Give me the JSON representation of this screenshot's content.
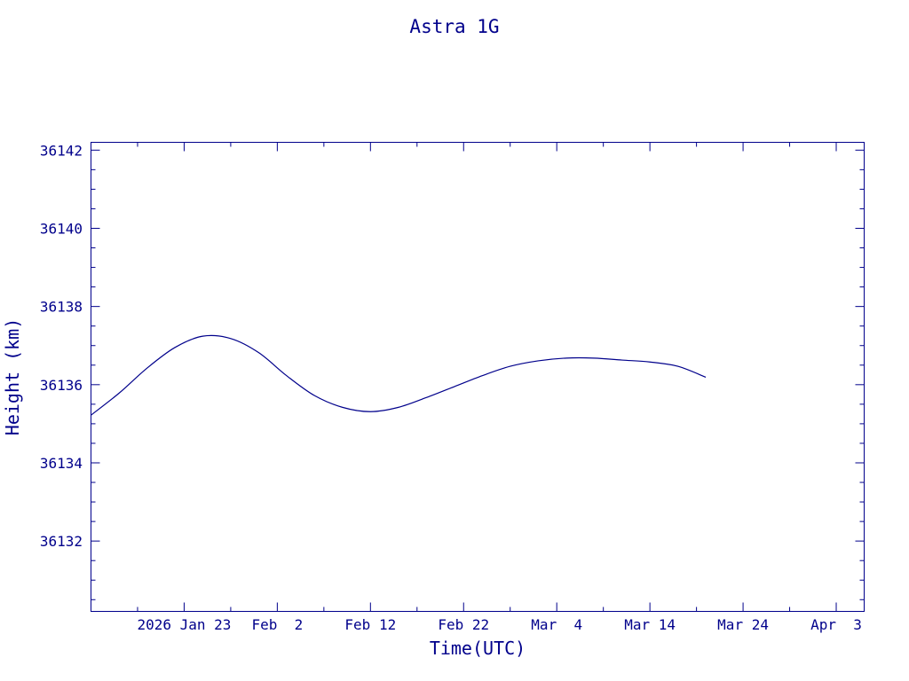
{
  "chart_data": {
    "type": "line",
    "title": "Astra 1G",
    "xlabel": "Time(UTC)",
    "ylabel": "Height (km)",
    "xlim": [
      "2026-01-13",
      "2026-04-06"
    ],
    "ylim": [
      36130.2,
      36142.2
    ],
    "x_ticks": [
      {
        "date": "2026-01-23",
        "label": "2026 Jan 23"
      },
      {
        "date": "2026-02-02",
        "label": "Feb  2"
      },
      {
        "date": "2026-02-12",
        "label": "Feb 12"
      },
      {
        "date": "2026-02-22",
        "label": "Feb 22"
      },
      {
        "date": "2026-03-04",
        "label": "Mar  4"
      },
      {
        "date": "2026-03-14",
        "label": "Mar 14"
      },
      {
        "date": "2026-03-24",
        "label": "Mar 24"
      },
      {
        "date": "2026-04-03",
        "label": "Apr  3"
      }
    ],
    "x_minor_ticks": [
      "2026-01-18",
      "2026-01-28",
      "2026-02-07",
      "2026-02-17",
      "2026-02-27",
      "2026-03-09",
      "2026-03-19",
      "2026-03-29"
    ],
    "y_ticks": [
      36132,
      36134,
      36136,
      36138,
      36140,
      36142
    ],
    "y_minor_step": 0.5,
    "grid": false,
    "legend": "none",
    "color": "#00008b",
    "series": [
      {
        "x": [
          "2026-01-13",
          "2026-01-16",
          "2026-01-19",
          "2026-01-22",
          "2026-01-25",
          "2026-01-28",
          "2026-01-31",
          "2026-02-03",
          "2026-02-06",
          "2026-02-09",
          "2026-02-12",
          "2026-02-15",
          "2026-02-18",
          "2026-02-21",
          "2026-02-24",
          "2026-02-27",
          "2026-03-02",
          "2026-03-05",
          "2026-03-08",
          "2026-03-11",
          "2026-03-14",
          "2026-03-17",
          "2026-03-20"
        ],
        "values": [
          36135.22,
          36135.78,
          36136.42,
          36136.95,
          36137.24,
          36137.18,
          36136.82,
          36136.23,
          36135.72,
          36135.42,
          36135.31,
          36135.42,
          36135.67,
          36135.95,
          36136.23,
          36136.47,
          36136.61,
          36136.68,
          36136.68,
          36136.63,
          36136.58,
          36136.47,
          36136.19
        ]
      }
    ]
  }
}
